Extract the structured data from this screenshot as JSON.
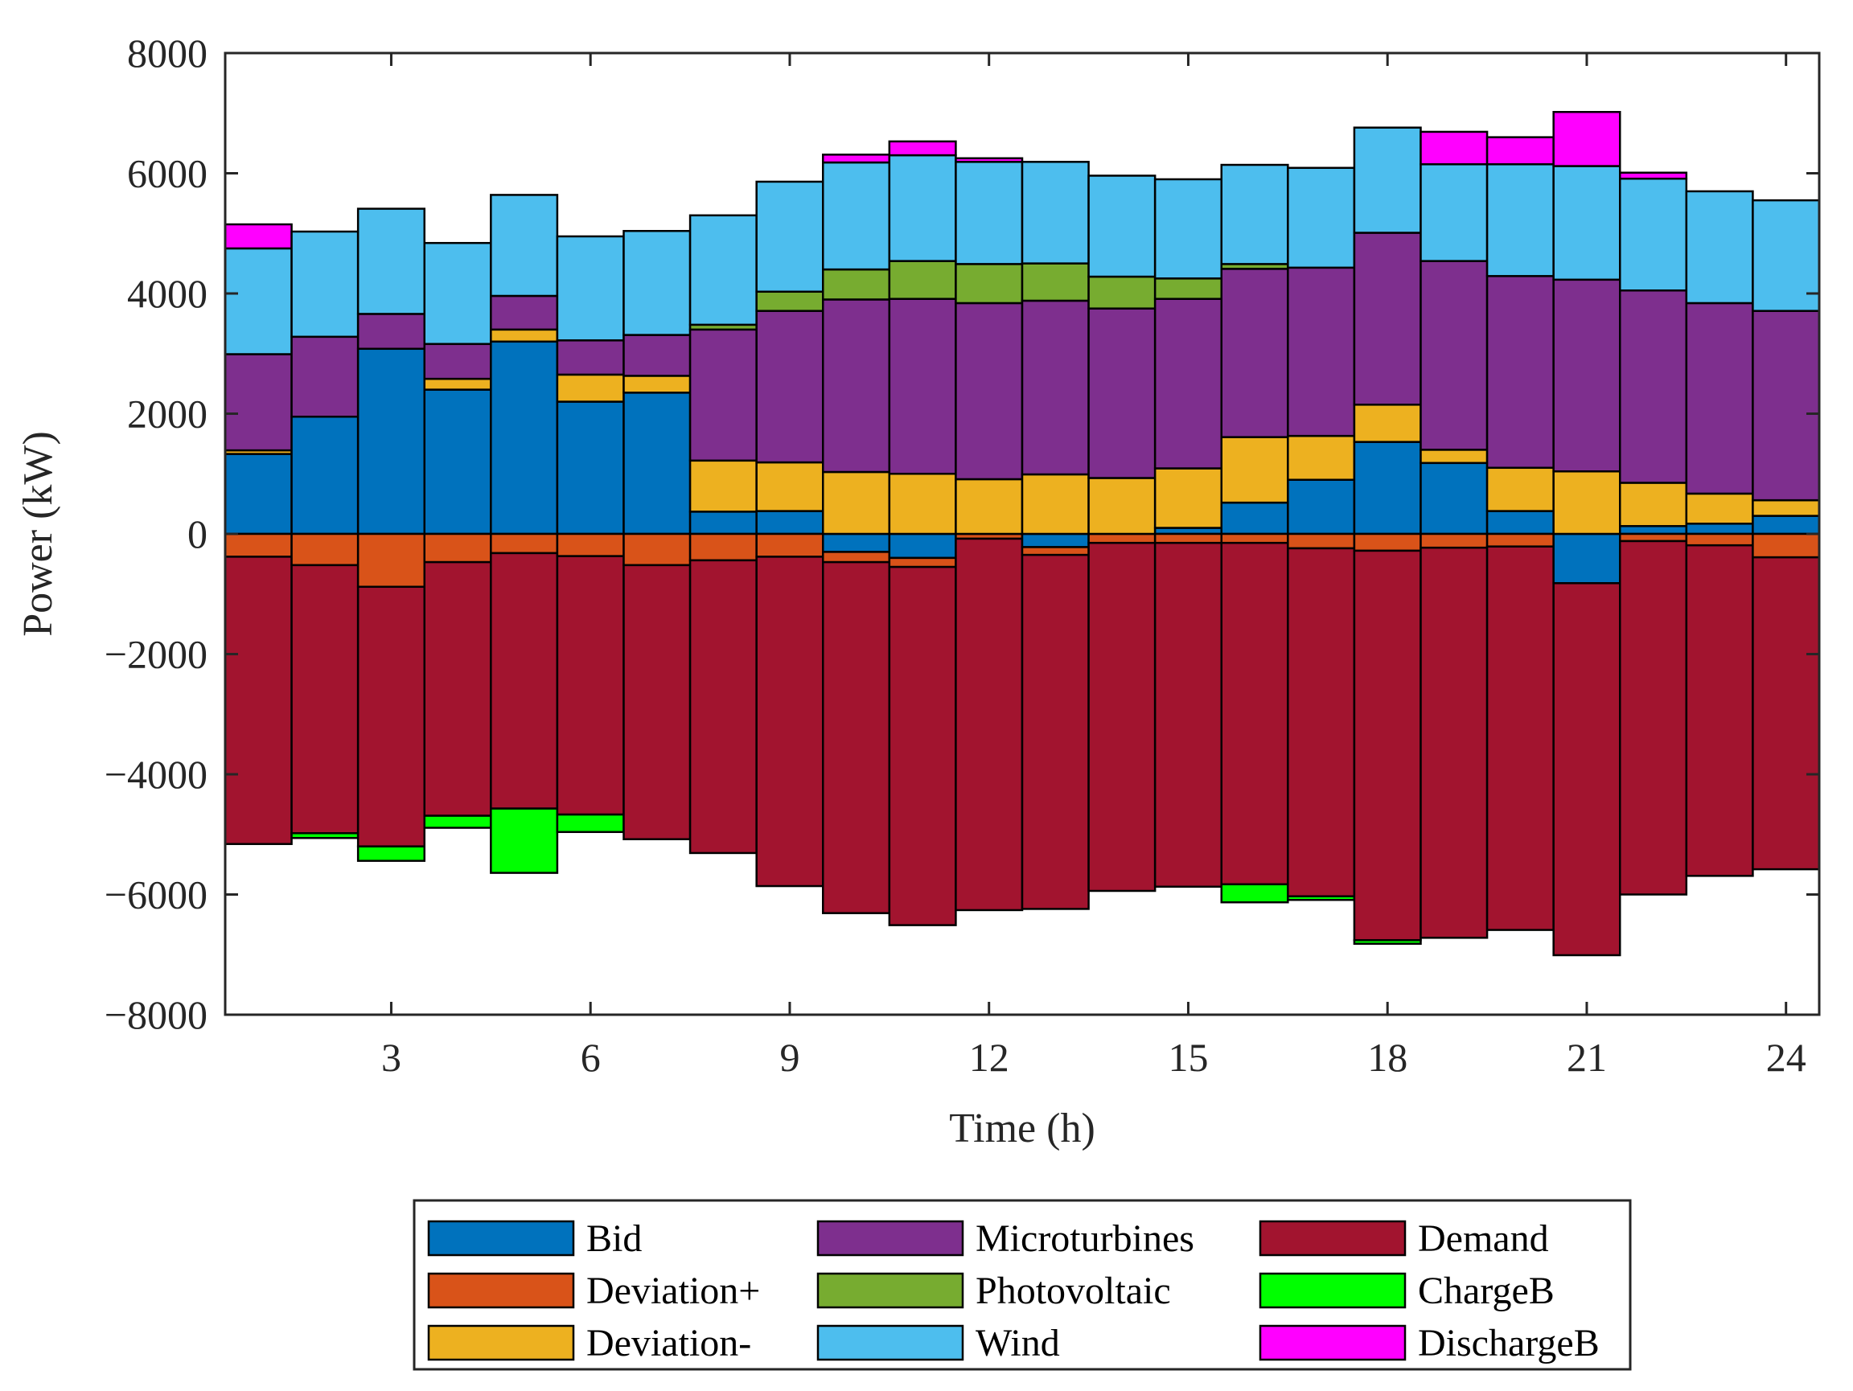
{
  "chart_data": {
    "type": "bar",
    "stacked": true,
    "xlabel": "Time (h)",
    "ylabel": "Power (kW)",
    "xlim": [
      0.5,
      24.5
    ],
    "ylim": [
      -8000,
      8000
    ],
    "x_ticks": [
      3,
      6,
      9,
      12,
      15,
      18,
      21,
      24
    ],
    "y_ticks": [
      -8000,
      -6000,
      -4000,
      -2000,
      0,
      2000,
      4000,
      6000,
      8000
    ],
    "y_tick_labels": [
      "−8000",
      "−6000",
      "−4000",
      "−2000",
      "0",
      "2000",
      "4000",
      "6000",
      "8000"
    ],
    "x": [
      1,
      2,
      3,
      4,
      5,
      6,
      7,
      8,
      9,
      10,
      11,
      12,
      13,
      14,
      15,
      16,
      17,
      18,
      19,
      20,
      21,
      22,
      23,
      24
    ],
    "legend_position": "bottom-outside",
    "series": [
      {
        "name": "Bid",
        "color": "#0072BD",
        "values": [
          1330,
          1950,
          3080,
          2400,
          3200,
          2200,
          2350,
          370,
          380,
          -300,
          -400,
          0,
          -220,
          0,
          100,
          520,
          900,
          1530,
          1180,
          380,
          -820,
          130,
          170,
          300
        ]
      },
      {
        "name": "Deviation+",
        "color": "#D95319",
        "values": [
          -380,
          -520,
          -880,
          -470,
          -320,
          -370,
          -520,
          -440,
          -380,
          -170,
          -150,
          -80,
          -130,
          -150,
          -150,
          -150,
          -240,
          -280,
          -230,
          -210,
          0,
          -120,
          -190,
          -390
        ]
      },
      {
        "name": "Deviation-",
        "color": "#EDB120",
        "values": [
          60,
          0,
          0,
          180,
          200,
          450,
          280,
          850,
          810,
          1030,
          1000,
          910,
          990,
          930,
          990,
          1090,
          730,
          620,
          220,
          720,
          1040,
          720,
          500,
          260
        ]
      },
      {
        "name": "Microturbines",
        "color": "#7E2F8E",
        "values": [
          1600,
          1330,
          580,
          580,
          560,
          570,
          680,
          2180,
          2520,
          2870,
          2910,
          2930,
          2890,
          2820,
          2820,
          2800,
          2800,
          2860,
          3140,
          3190,
          3190,
          3200,
          3170,
          3150
        ]
      },
      {
        "name": "Photovoltaic",
        "color": "#77AC30",
        "values": [
          0,
          0,
          0,
          0,
          0,
          0,
          0,
          80,
          320,
          500,
          630,
          650,
          620,
          530,
          340,
          80,
          0,
          0,
          0,
          0,
          0,
          0,
          0,
          0
        ]
      },
      {
        "name": "Wind",
        "color": "#4DBEEE",
        "values": [
          1760,
          1750,
          1750,
          1680,
          1680,
          1730,
          1730,
          1820,
          1830,
          1780,
          1760,
          1700,
          1690,
          1680,
          1650,
          1650,
          1660,
          1750,
          1610,
          1860,
          1890,
          1860,
          1860,
          1840
        ]
      },
      {
        "name": "Demand",
        "color": "#A2142F",
        "values": [
          -4780,
          -4460,
          -4320,
          -4220,
          -4250,
          -4300,
          -4560,
          -4870,
          -5480,
          -5840,
          -5960,
          -6180,
          -5890,
          -5790,
          -5720,
          -5680,
          -5790,
          -6480,
          -6490,
          -6380,
          -6190,
          -5880,
          -5500,
          -5190
        ]
      },
      {
        "name": "ChargeB",
        "color": "#00FF00",
        "values": [
          0,
          -80,
          -240,
          -200,
          -1070,
          -290,
          0,
          0,
          0,
          0,
          0,
          0,
          0,
          0,
          0,
          -300,
          -60,
          -60,
          0,
          0,
          0,
          0,
          0,
          0
        ]
      },
      {
        "name": "DischargeB",
        "color": "#FF00FF",
        "values": [
          400,
          0,
          0,
          0,
          0,
          0,
          0,
          0,
          0,
          130,
          230,
          60,
          0,
          0,
          0,
          0,
          0,
          0,
          540,
          450,
          900,
          100,
          0,
          0
        ]
      }
    ]
  }
}
